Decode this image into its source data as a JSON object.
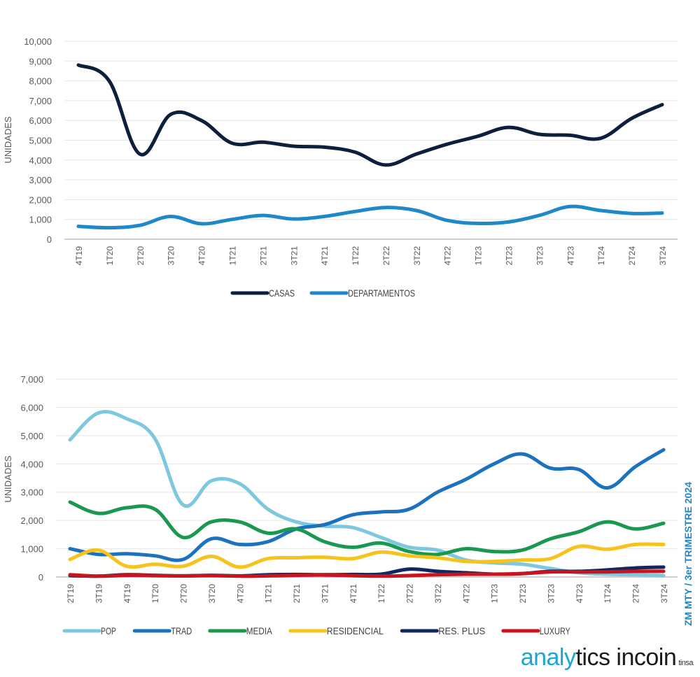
{
  "side_label": "ZM MTY  / 3er TRIMESTRE 2024",
  "logo": {
    "part1": "analy",
    "part2": "tics",
    "part3": " incoin",
    "by": "tinsa"
  },
  "colors": {
    "casas": "#0d1f3c",
    "departamentos": "#1e88c8",
    "pop": "#7ec8df",
    "trad": "#1c72bf",
    "media": "#1a9850",
    "residencial": "#f6c31c",
    "res_plus": "#13275e",
    "luxury": "#c8141e",
    "side_label": "#1e88c8"
  },
  "chart_data": [
    {
      "type": "line",
      "title": "",
      "xlabel": "",
      "ylabel": "UNIDADES",
      "ylim": [
        0,
        10000
      ],
      "yticks": [
        0,
        1000,
        2000,
        3000,
        4000,
        5000,
        6000,
        7000,
        8000,
        9000,
        10000
      ],
      "ytick_labels": [
        "0",
        "1,000",
        "2,000",
        "3,000",
        "4,000",
        "5,000",
        "6,000",
        "7,000",
        "8,000",
        "9,000",
        "10,000"
      ],
      "grid": true,
      "legend": "bottom",
      "categories": [
        "4T19",
        "1T20",
        "2T20",
        "3T20",
        "4T20",
        "1T21",
        "2T21",
        "3T21",
        "4T21",
        "1T22",
        "2T22",
        "3T22",
        "4T22",
        "1T23",
        "2T23",
        "3T23",
        "4T23",
        "1T24",
        "2T24",
        "3T24"
      ],
      "series": [
        {
          "name": "CASAS",
          "color_key": "casas",
          "values": [
            8800,
            8000,
            4300,
            6300,
            6000,
            4850,
            4900,
            4700,
            4650,
            4400,
            3750,
            4300,
            4800,
            5200,
            5650,
            5300,
            5250,
            5100,
            6100,
            6800
          ]
        },
        {
          "name": "DEPARTAMENTOS",
          "color_key": "departamentos",
          "values": [
            650,
            580,
            700,
            1150,
            780,
            1000,
            1200,
            1020,
            1150,
            1400,
            1600,
            1450,
            950,
            800,
            870,
            1200,
            1650,
            1450,
            1300,
            1320
          ]
        }
      ]
    },
    {
      "type": "line",
      "title": "",
      "xlabel": "",
      "ylabel": "UNIDADES",
      "ylim": [
        0,
        7000
      ],
      "yticks": [
        0,
        1000,
        2000,
        3000,
        4000,
        5000,
        6000,
        7000
      ],
      "ytick_labels": [
        "0",
        "1,000",
        "2,000",
        "3,000",
        "4,000",
        "5,000",
        "6,000",
        "7,000"
      ],
      "grid": true,
      "legend": "bottom",
      "categories": [
        "2T19",
        "3T19",
        "4T19",
        "1T20",
        "2T20",
        "3T20",
        "4T20",
        "1T21",
        "2T21",
        "3T21",
        "4T21",
        "1T22",
        "2T22",
        "3T22",
        "4T22",
        "1T23",
        "2T23",
        "3T23",
        "4T23",
        "1T24",
        "2T24",
        "3T24"
      ],
      "series": [
        {
          "name": "POP",
          "color_key": "pop",
          "values": [
            4850,
            5800,
            5600,
            4900,
            2550,
            3400,
            3300,
            2400,
            1950,
            1800,
            1750,
            1400,
            1050,
            950,
            600,
            500,
            450,
            300,
            150,
            100,
            80,
            50
          ]
        },
        {
          "name": "TRAD",
          "color_key": "trad",
          "values": [
            1000,
            800,
            820,
            750,
            620,
            1350,
            1150,
            1250,
            1700,
            1850,
            2200,
            2300,
            2400,
            3000,
            3450,
            4000,
            4350,
            3850,
            3800,
            3150,
            3900,
            4500
          ]
        },
        {
          "name": "MEDIA",
          "color_key": "media",
          "values": [
            2650,
            2250,
            2450,
            2400,
            1400,
            1950,
            1950,
            1550,
            1700,
            1250,
            1050,
            1200,
            900,
            800,
            1000,
            900,
            950,
            1350,
            1600,
            1950,
            1700,
            1900
          ]
        },
        {
          "name": "RESIDENCIAL",
          "color_key": "residencial",
          "values": [
            620,
            950,
            380,
            450,
            380,
            730,
            350,
            650,
            680,
            700,
            650,
            880,
            750,
            680,
            550,
            550,
            600,
            650,
            1080,
            980,
            1150,
            1150
          ]
        },
        {
          "name": "RES. PLUS",
          "color_key": "res_plus",
          "values": [
            50,
            30,
            80,
            60,
            40,
            60,
            40,
            80,
            90,
            80,
            90,
            100,
            280,
            200,
            150,
            100,
            120,
            200,
            200,
            250,
            320,
            350
          ]
        },
        {
          "name": "LUXURY",
          "color_key": "luxury",
          "values": [
            80,
            30,
            60,
            50,
            40,
            50,
            30,
            40,
            60,
            70,
            50,
            30,
            50,
            80,
            100,
            100,
            120,
            180,
            180,
            180,
            200,
            200
          ]
        }
      ]
    }
  ]
}
